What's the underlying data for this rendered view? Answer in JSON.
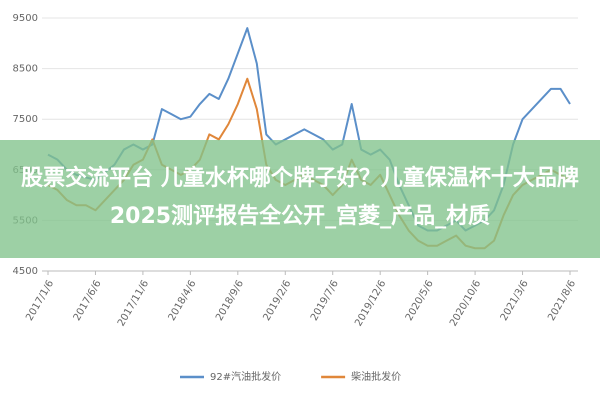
{
  "chart_data": {
    "type": "line",
    "categories": [
      "2017/1/6",
      null,
      null,
      null,
      null,
      "2017/6/6",
      null,
      null,
      null,
      null,
      "2017/11/6",
      null,
      null,
      null,
      null,
      "2018/4/6",
      null,
      null,
      null,
      null,
      "2018/9/6",
      null,
      null,
      null,
      null,
      "2019/2/6",
      null,
      null,
      null,
      null,
      "2019/7/6",
      null,
      null,
      null,
      null,
      "2019/12/6",
      null,
      null,
      null,
      null,
      "2020/5/6",
      null,
      null,
      null,
      null,
      "2020/10/6",
      null,
      null,
      null,
      null,
      "2021/3/6",
      null,
      null,
      null,
      null,
      "2021/8/6"
    ],
    "series": [
      {
        "name": "92#汽油批发价",
        "color": "#5b8fc9",
        "values": [
          6800,
          6700,
          6500,
          6400,
          6350,
          6300,
          6450,
          6600,
          6900,
          7000,
          6900,
          7000,
          7700,
          7600,
          7500,
          7550,
          7800,
          8000,
          7900,
          8300,
          8800,
          9300,
          8600,
          7200,
          7000,
          7100,
          7200,
          7300,
          7200,
          7100,
          6900,
          7000,
          7800,
          6900,
          6800,
          6900,
          6700,
          6200,
          5800,
          5400,
          5300,
          5300,
          5400,
          5500,
          5300,
          5400,
          5500,
          5700,
          6200,
          7000,
          7500,
          7700,
          7900,
          8100,
          8100,
          7800
        ]
      },
      {
        "name": "柴油批发价",
        "color": "#e0873a",
        "values": [
          6200,
          6100,
          5900,
          5800,
          5800,
          5700,
          5900,
          6100,
          6300,
          6600,
          6700,
          7100,
          6600,
          6500,
          6400,
          6500,
          6700,
          7200,
          7100,
          7400,
          7800,
          8300,
          7700,
          6600,
          6300,
          6200,
          6300,
          6400,
          6300,
          6200,
          6000,
          6200,
          6700,
          6300,
          6200,
          6400,
          6000,
          5600,
          5300,
          5100,
          5000,
          5000,
          5100,
          5200,
          5000,
          4950,
          4950,
          5100,
          5600,
          6000,
          6200,
          6300,
          6400,
          6500,
          6400,
          6300
        ]
      }
    ],
    "ylim": [
      4500,
      9500
    ],
    "yticks": [
      4500,
      5500,
      6500,
      7500,
      8500,
      9500
    ],
    "grid": true
  },
  "banner": {
    "text": "股票交流平台 儿童水杯哪个牌子好？儿童保温杯十大品牌2025测评报告全公开_宫菱_产品_材质"
  }
}
